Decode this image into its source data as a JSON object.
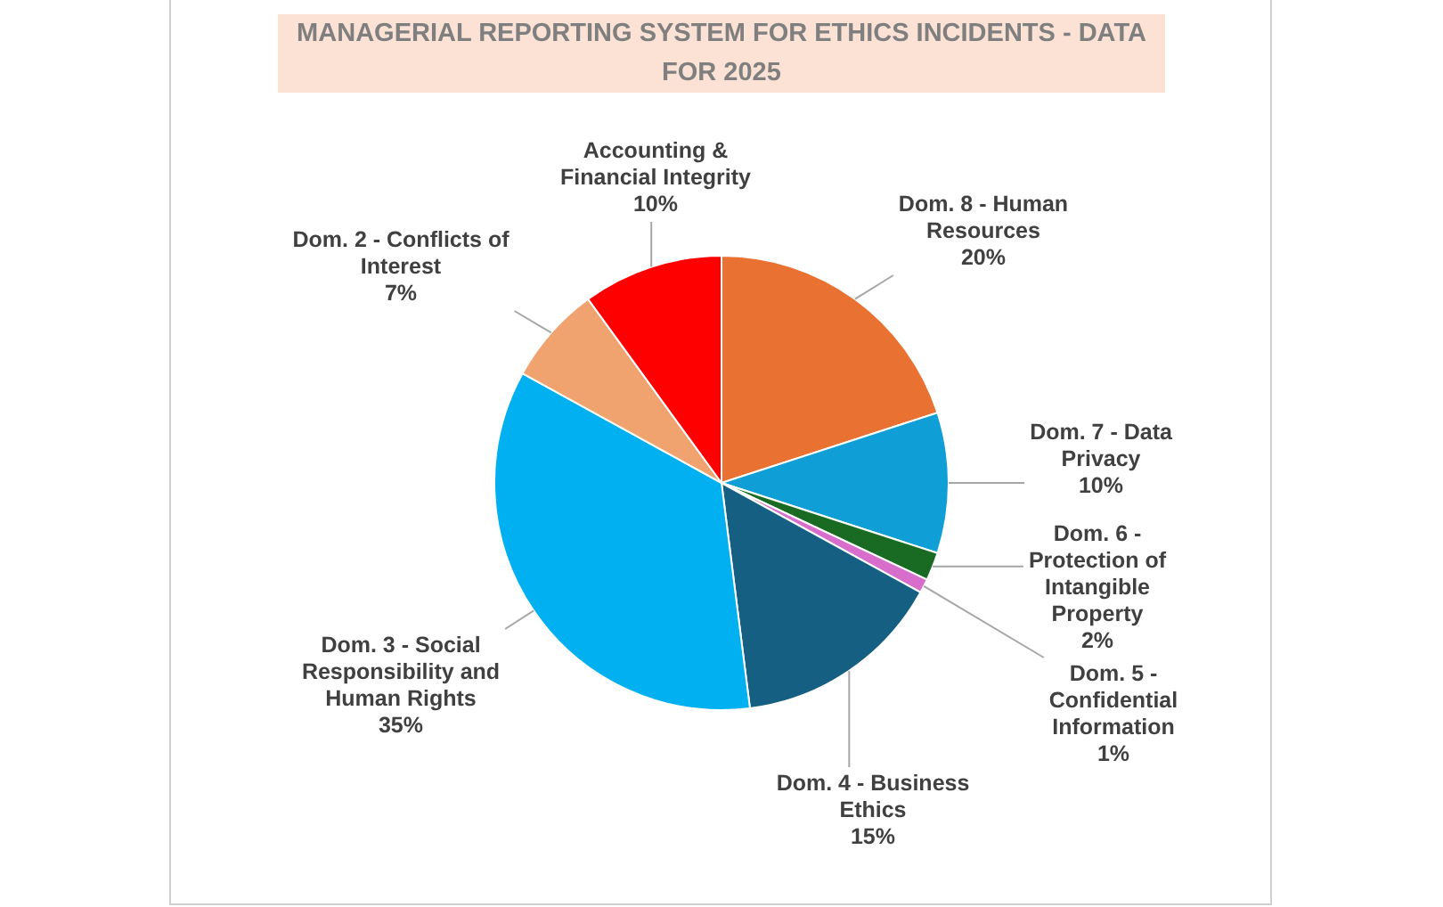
{
  "chart_data": {
    "type": "pie",
    "title": "MANAGERIAL REPORTING SYSTEM FOR ETHICS INCIDENTS - DATA FOR 2025",
    "categories": [
      "Dom. 8 - Human Resources",
      "Dom. 7 - Data Privacy",
      "Dom. 6 - Protection of Intangible Property",
      "Dom. 5 - Confidential Information",
      "Dom. 4 - Business Ethics",
      "Dom. 3 - Social Responsibility and Human Rights",
      "Dom. 2 - Conflicts of Interest",
      "Accounting & Financial Integrity"
    ],
    "values": [
      20,
      10,
      2,
      1,
      15,
      35,
      7,
      10
    ],
    "value_labels": [
      "20%",
      "10%",
      "2%",
      "1%",
      "15%",
      "35%",
      "7%",
      "10%"
    ],
    "colors": [
      "#e97132",
      "#0f9ed5",
      "#196b24",
      "#d86ecc",
      "#156082",
      "#00b0f0",
      "#f1a36f",
      "#ff0000"
    ],
    "legend": false
  }
}
